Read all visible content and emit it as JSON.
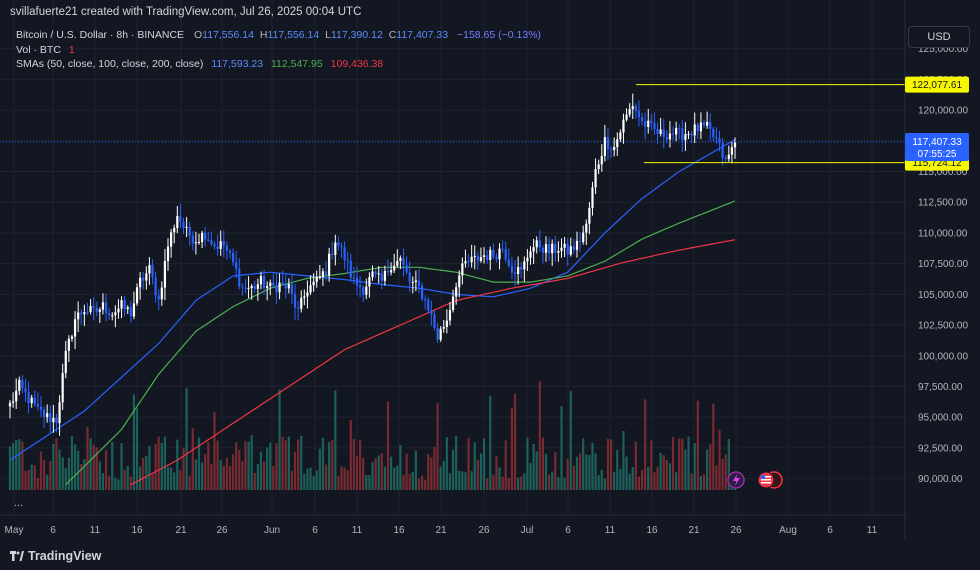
{
  "header": {
    "credit": "svillafuerte21 created with TradingView.com, Jul 26, 2025 00:04 UTC"
  },
  "legend": {
    "symbol": "Bitcoin / U.S. Dollar · 8h · BINANCE",
    "open_label": "O",
    "open": "117,556.14",
    "high_label": "H",
    "high": "117,556.14",
    "low_label": "L",
    "low": "117,390.12",
    "close_label": "C",
    "close": "117,407.33",
    "change": "−158.65 (−0.13%)",
    "vol_label": "Vol · BTC",
    "vol_value": "1",
    "sma_label": "SMAs (50, close, 100, close, 200, close)",
    "sma50": "117,593.23",
    "sma100": "112,547.95",
    "sma200": "109,436.38"
  },
  "currency_button": "USD",
  "more_button": "...",
  "footer": {
    "brand": "TradingView"
  },
  "colors": {
    "background": "#131722",
    "up": "#ffffff",
    "down": "#2962ff",
    "sma50": "#2962ff",
    "sma100": "#4caf50",
    "sma200": "#f23645",
    "level": "#f7f700",
    "price_badge": "#2962ff"
  },
  "chart_data": {
    "type": "candlestick",
    "y_ticks": [
      "125,000.00",
      "122,500.00",
      "120,000.00",
      "117,500.00",
      "115,000.00",
      "112,500.00",
      "110,000.00",
      "107,500.00",
      "105,000.00",
      "102,500.00",
      "100,000.00",
      "97,500.00",
      "95,000.00",
      "92,500.00",
      "90,000.00"
    ],
    "x_ticks": [
      "May",
      "6",
      "11",
      "16",
      "21",
      "26",
      "Jun",
      "6",
      "11",
      "16",
      "21",
      "26",
      "Jul",
      "6",
      "11",
      "16",
      "21",
      "26",
      "Aug",
      "6",
      "11"
    ],
    "ylim": [
      88500,
      127500
    ],
    "levels": [
      {
        "value": 122077.61,
        "label": "122,077.61"
      },
      {
        "value": 115724.12,
        "label": "115,724.12"
      }
    ],
    "last_price": {
      "value": 117407.33,
      "label": "117,407.33",
      "countdown": "07:55:25"
    },
    "price_anchors": [
      [
        0,
        96000
      ],
      [
        1,
        97500
      ],
      [
        2,
        96500
      ],
      [
        3,
        95500
      ],
      [
        4,
        95000
      ],
      [
        5,
        94800
      ],
      [
        6,
        100000
      ],
      [
        7,
        103000
      ],
      [
        8,
        103800
      ],
      [
        9,
        103500
      ],
      [
        10,
        104000
      ],
      [
        11,
        103500
      ],
      [
        12,
        104000
      ],
      [
        13,
        103500
      ],
      [
        14,
        106000
      ],
      [
        15,
        107000
      ],
      [
        16,
        104500
      ],
      [
        17,
        109000
      ],
      [
        18,
        111500
      ],
      [
        19,
        110000
      ],
      [
        20,
        109500
      ],
      [
        21,
        110000
      ],
      [
        22,
        109000
      ],
      [
        23,
        109000
      ],
      [
        24,
        107500
      ],
      [
        25,
        105500
      ],
      [
        26,
        105500
      ],
      [
        27,
        106000
      ],
      [
        28,
        105500
      ],
      [
        29,
        105800
      ],
      [
        30,
        105500
      ],
      [
        31,
        103500
      ],
      [
        32,
        105500
      ],
      [
        33,
        106000
      ],
      [
        34,
        107000
      ],
      [
        35,
        109500
      ],
      [
        36,
        108000
      ],
      [
        37,
        106000
      ],
      [
        38,
        105500
      ],
      [
        39,
        106500
      ],
      [
        40,
        106000
      ],
      [
        41,
        107500
      ],
      [
        42,
        107800
      ],
      [
        43,
        106000
      ],
      [
        44,
        105500
      ],
      [
        45,
        104000
      ],
      [
        46,
        101500
      ],
      [
        47,
        103000
      ],
      [
        48,
        106000
      ],
      [
        49,
        107500
      ],
      [
        50,
        107800
      ],
      [
        51,
        108200
      ],
      [
        52,
        108200
      ],
      [
        53,
        108800
      ],
      [
        54,
        107200
      ],
      [
        55,
        106800
      ],
      [
        56,
        108800
      ],
      [
        57,
        109000
      ],
      [
        58,
        108500
      ],
      [
        59,
        108800
      ],
      [
        60,
        108500
      ],
      [
        61,
        109000
      ],
      [
        62,
        110500
      ],
      [
        63,
        115000
      ],
      [
        64,
        117500
      ],
      [
        65,
        117000
      ],
      [
        66,
        119000
      ],
      [
        67,
        120500
      ],
      [
        68,
        119000
      ],
      [
        69,
        118500
      ],
      [
        70,
        118000
      ],
      [
        71,
        118200
      ],
      [
        72,
        118000
      ],
      [
        73,
        118200
      ],
      [
        74,
        118500
      ],
      [
        75,
        118500
      ],
      [
        76,
        117500
      ],
      [
        77,
        115700
      ],
      [
        78,
        117400
      ]
    ],
    "volume_max_label": "",
    "series": [
      {
        "name": "SMA 50",
        "anchors": [
          [
            0,
            91500
          ],
          [
            8,
            95500
          ],
          [
            16,
            101000
          ],
          [
            20,
            104500
          ],
          [
            24,
            106500
          ],
          [
            28,
            106800
          ],
          [
            32,
            106500
          ],
          [
            36,
            106200
          ],
          [
            40,
            105800
          ],
          [
            44,
            105500
          ],
          [
            48,
            105000
          ],
          [
            52,
            104800
          ],
          [
            56,
            105500
          ],
          [
            60,
            106800
          ],
          [
            64,
            110000
          ],
          [
            68,
            112800
          ],
          [
            72,
            115000
          ],
          [
            78,
            117600
          ]
        ]
      },
      {
        "name": "SMA 100",
        "anchors": [
          [
            6,
            89500
          ],
          [
            12,
            94000
          ],
          [
            16,
            98500
          ],
          [
            20,
            102000
          ],
          [
            24,
            104000
          ],
          [
            28,
            105500
          ],
          [
            32,
            106300
          ],
          [
            36,
            106700
          ],
          [
            40,
            107200
          ],
          [
            44,
            107200
          ],
          [
            48,
            106800
          ],
          [
            52,
            106000
          ],
          [
            56,
            106000
          ],
          [
            60,
            106500
          ],
          [
            64,
            107700
          ],
          [
            68,
            109500
          ],
          [
            72,
            110800
          ],
          [
            78,
            112600
          ]
        ]
      },
      {
        "name": "SMA 200",
        "anchors": [
          [
            13,
            89500
          ],
          [
            18,
            91500
          ],
          [
            24,
            94500
          ],
          [
            30,
            97500
          ],
          [
            36,
            100500
          ],
          [
            42,
            102500
          ],
          [
            48,
            104500
          ],
          [
            54,
            105500
          ],
          [
            60,
            106300
          ],
          [
            66,
            107600
          ],
          [
            72,
            108600
          ],
          [
            78,
            109450
          ]
        ]
      }
    ]
  }
}
